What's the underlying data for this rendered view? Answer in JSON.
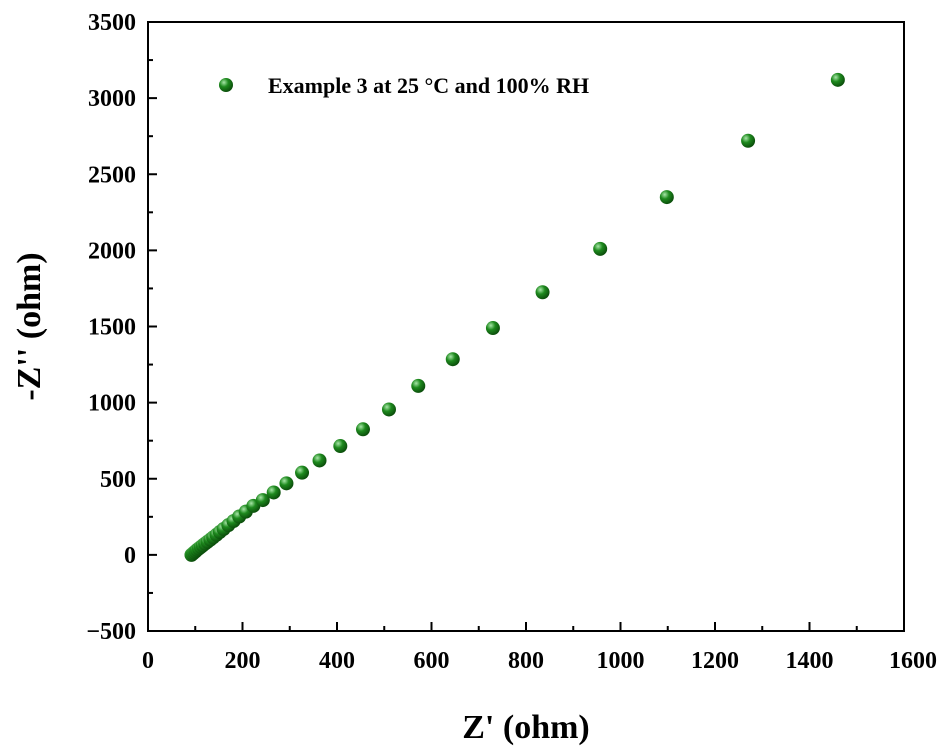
{
  "chart_data": {
    "type": "scatter",
    "xlabel": "Z' (ohm)",
    "ylabel": "-Z'' (ohm)",
    "xlim": [
      0,
      1600
    ],
    "ylim": [
      -500,
      3500
    ],
    "x_ticks": [
      0,
      200,
      400,
      600,
      800,
      1000,
      1200,
      1400,
      1600
    ],
    "y_ticks": [
      -500,
      0,
      500,
      1000,
      1500,
      2000,
      2500,
      3000,
      3500
    ],
    "x_tick_labels": [
      "0",
      "200",
      "400",
      "600",
      "800",
      "1000",
      "1200",
      "1400",
      "1600"
    ],
    "y_tick_labels": [
      "−500",
      "0",
      "500",
      "1000",
      "1500",
      "2000",
      "2500",
      "3000",
      "3500"
    ],
    "grid": false,
    "legend_position": "top-left",
    "colors": {
      "marker": "#1e8a1e",
      "marker_dark": "#0b4d0b",
      "marker_highlight": "#a8e6a8",
      "axis": "#000000"
    },
    "series": [
      {
        "name": "Example 3 at 25 °C and 100% RH",
        "x": [
          92,
          95,
          98,
          101,
          104,
          108,
          112,
          116,
          121,
          126,
          132,
          138,
          145,
          152,
          160,
          170,
          181,
          193,
          207,
          223,
          243,
          266,
          293,
          326,
          363,
          407,
          455,
          510,
          572,
          645,
          730,
          835,
          957,
          1098,
          1270,
          1460
        ],
        "y": [
          0,
          8,
          16,
          24,
          33,
          42,
          52,
          62,
          74,
          86,
          100,
          115,
          132,
          150,
          170,
          195,
          222,
          252,
          284,
          322,
          360,
          410,
          470,
          540,
          620,
          715,
          825,
          955,
          1110,
          1285,
          1490,
          1725,
          2010,
          2350,
          2720,
          3120
        ]
      }
    ]
  }
}
